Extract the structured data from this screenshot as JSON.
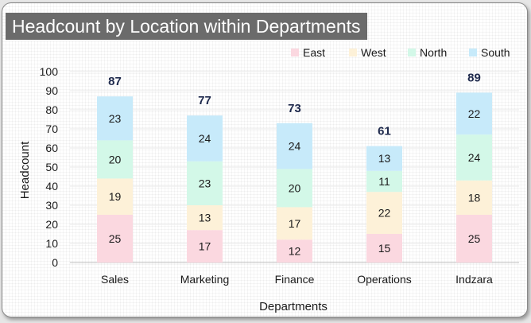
{
  "chart_data": {
    "type": "bar",
    "stacked": true,
    "title": "Headcount by Location within Departments",
    "xlabel": "Departments",
    "ylabel": "Headcount",
    "ylim": [
      0,
      100
    ],
    "yticks": [
      0,
      10,
      20,
      30,
      40,
      50,
      60,
      70,
      80,
      90,
      100
    ],
    "categories": [
      "Sales",
      "Marketing",
      "Finance",
      "Operations",
      "Indzara"
    ],
    "series": [
      {
        "name": "East",
        "color": "#fbd8e0",
        "values": [
          25,
          17,
          12,
          15,
          25
        ]
      },
      {
        "name": "West",
        "color": "#fdf1d8",
        "values": [
          19,
          13,
          17,
          22,
          18
        ]
      },
      {
        "name": "North",
        "color": "#d3f8e8",
        "values": [
          20,
          23,
          20,
          11,
          24
        ]
      },
      {
        "name": "South",
        "color": "#c7eafa",
        "values": [
          23,
          24,
          24,
          13,
          22
        ]
      }
    ],
    "totals": [
      87,
      77,
      73,
      61,
      89
    ],
    "legend_position": "top-right"
  }
}
